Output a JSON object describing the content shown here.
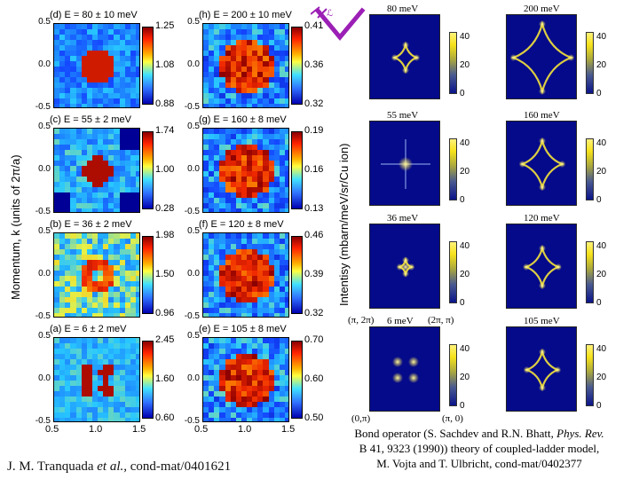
{
  "ylabel_left": "Momentum, k (units of 2π/a)",
  "ylabel_mid": "Intentisy (mbarn/meV/sr/Cu ion)",
  "experiment": {
    "y_ticks": [
      "0.5",
      "0.0",
      "-0.5"
    ],
    "x_ticks": [
      "0.5",
      "1.0",
      "1.5"
    ],
    "panels": [
      {
        "title": "(d) E = 80 ± 10 meV",
        "cbar": [
          "1.25",
          "1.08",
          "0.88"
        ]
      },
      {
        "title": "(h) E = 200 ± 10 meV",
        "cbar": [
          "0.41",
          "0.36",
          "0.32"
        ]
      },
      {
        "title": "(c) E = 55 ± 2 meV",
        "cbar": [
          "1.74",
          "1.00",
          "0.28"
        ]
      },
      {
        "title": "(g) E = 160 ± 8 meV",
        "cbar": [
          "0.19",
          "0.16",
          "0.13"
        ]
      },
      {
        "title": "(b) E = 36 ± 2 meV",
        "cbar": [
          "1.98",
          "1.50",
          "0.96"
        ]
      },
      {
        "title": "(f) E = 120 ± 8 meV",
        "cbar": [
          "0.46",
          "0.39",
          "0.32"
        ]
      },
      {
        "title": "(a) E = 6 ± 2 meV",
        "cbar": [
          "2.45",
          "1.60",
          "0.60"
        ]
      },
      {
        "title": "(e) E = 105 ± 8 meV",
        "cbar": [
          "0.70",
          "0.60",
          "0.50"
        ]
      }
    ]
  },
  "theory": {
    "cbar_ticks": [
      "40",
      "20",
      "0"
    ],
    "panels": [
      {
        "label": "80 meV"
      },
      {
        "label": "200 meV"
      },
      {
        "label": "55 meV"
      },
      {
        "label": "160 meV"
      },
      {
        "label": "36 meV"
      },
      {
        "label": "120 meV"
      },
      {
        "label": "6 meV"
      },
      {
        "label": "105 meV"
      }
    ],
    "corner_labels": {
      "top_left": "(π, 2π)",
      "top_right": "(2π, π)",
      "bottom_left": "(0,π)",
      "bottom_right": "(π, 0)"
    }
  },
  "credit_left": {
    "authors": "J. M. Tranquada ",
    "etal": "et al.,",
    "ref": " cond-mat/0401621"
  },
  "credit_right": {
    "line1_a": "Bond operator (S. Sachdev and R.N. Bhatt, ",
    "line1_b": "Phys. Rev.",
    "line2": "B 41, 9323 (1990)) theory of coupled-ladder model,",
    "line3": "M. Vojta and T. Ulbricht, cond-mat/0402377"
  },
  "colors": {
    "theory_bg": "#050a8a",
    "theory_line": "#f4e23a",
    "logo": "#9b1fb5"
  }
}
